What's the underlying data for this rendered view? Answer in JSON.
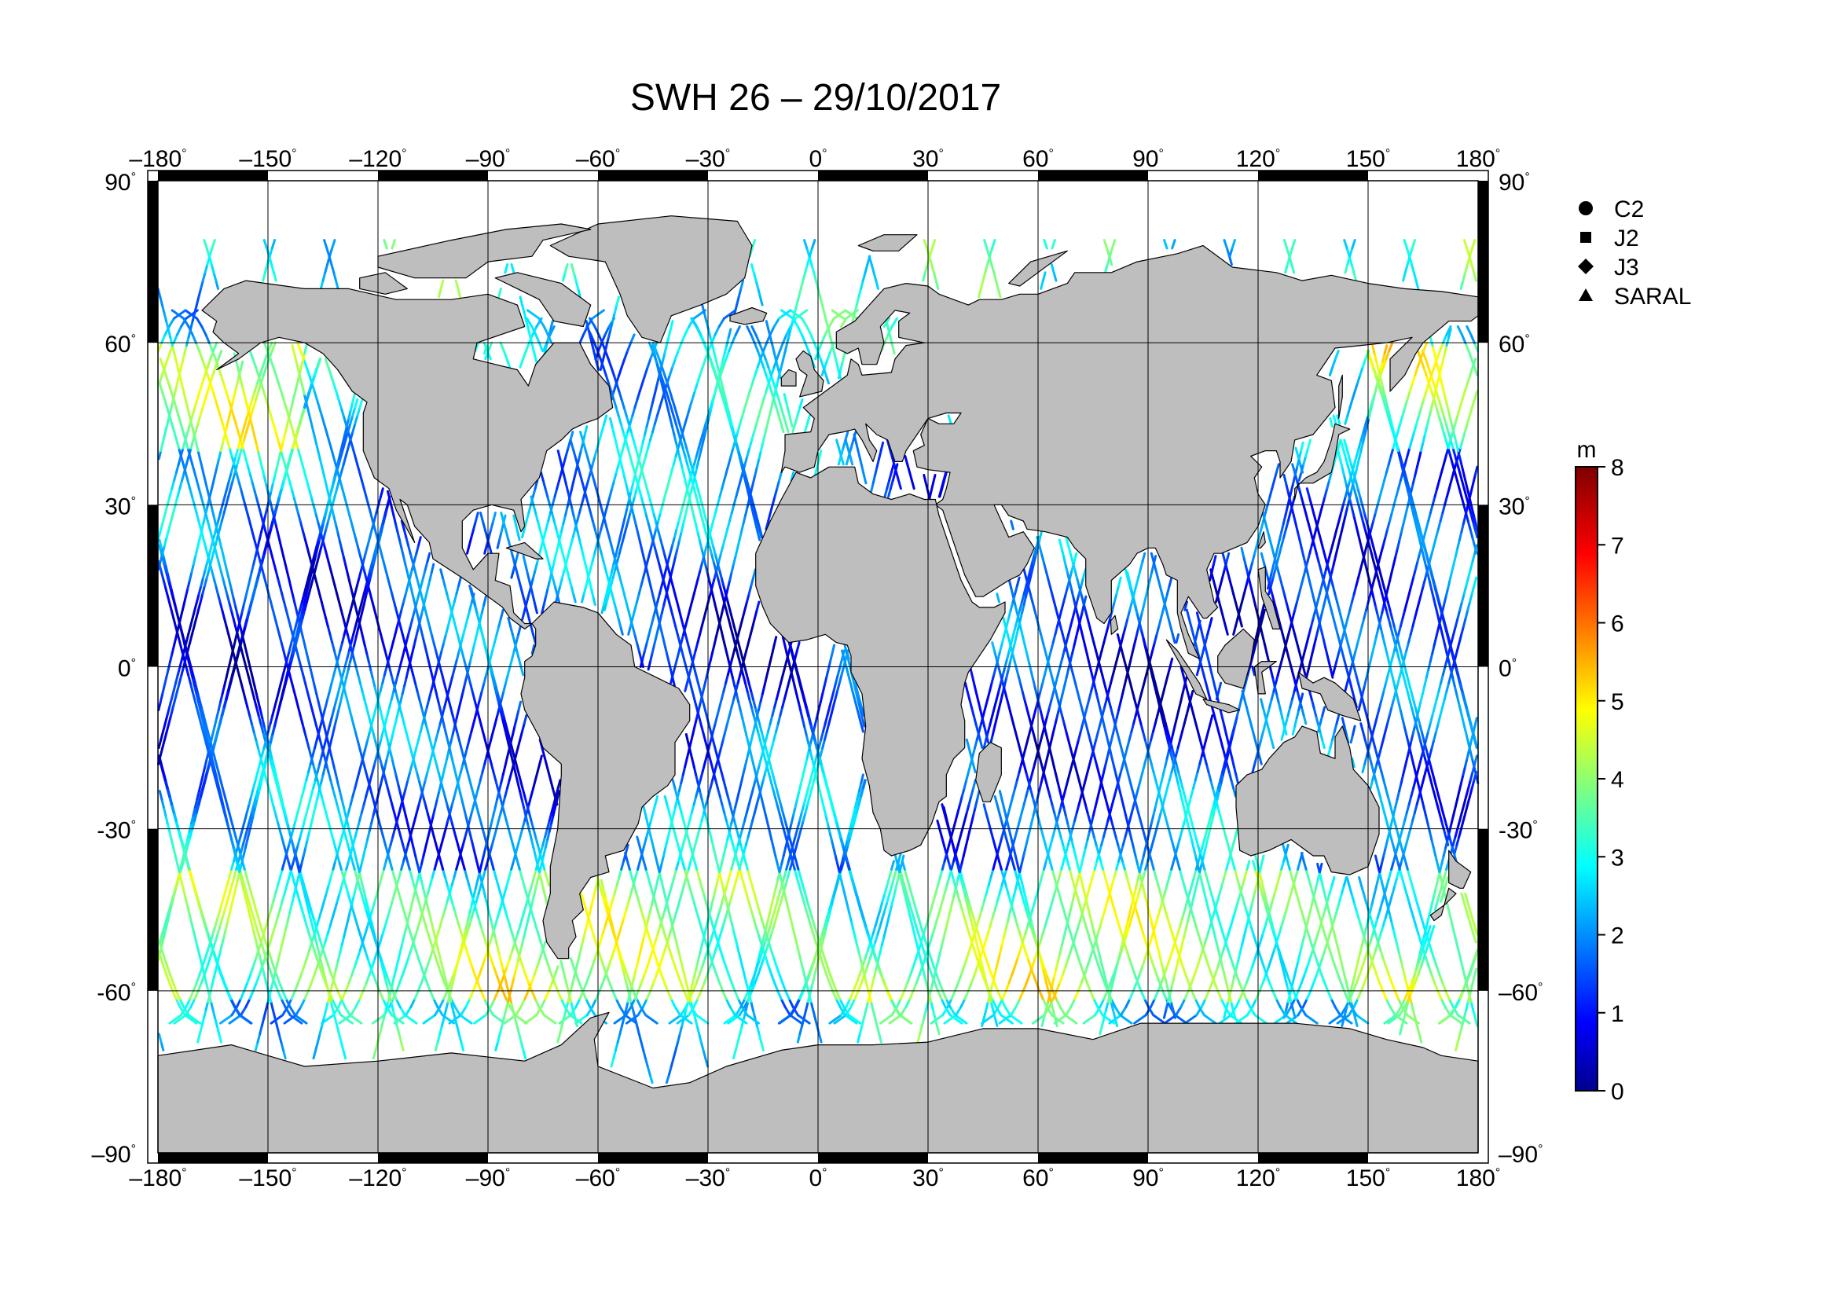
{
  "title": "SWH 26 – 29/10/2017",
  "x_ticks": [
    "–180",
    "–150",
    "–120",
    "–90",
    "–60",
    "–30",
    "0",
    "30",
    "60",
    "90",
    "120",
    "150",
    "180"
  ],
  "y_ticks": [
    "90",
    "60",
    "30",
    "0",
    "-30",
    "-60",
    "–90"
  ],
  "y_ticks_right": [
    "90",
    "60",
    "30",
    "0",
    "-30",
    "–60",
    "–90"
  ],
  "degree_symbol": "°",
  "legend": [
    {
      "label": "C2",
      "marker": "circle"
    },
    {
      "label": "J2",
      "marker": "square"
    },
    {
      "label": "J3",
      "marker": "diamond"
    },
    {
      "label": "SARAL",
      "marker": "triangle"
    }
  ],
  "colorbar": {
    "unit": "m",
    "min": 0,
    "max": 8,
    "ticks": [
      "0",
      "1",
      "2",
      "3",
      "4",
      "5",
      "6",
      "7",
      "8"
    ],
    "colormap": "jet"
  },
  "colors": {
    "land": "#bebebe",
    "ocean": "#ffffff",
    "grid": "#000000"
  },
  "map": {
    "projection": "equirectangular",
    "lon_range": [
      -180,
      180
    ],
    "lat_range": [
      -90,
      90
    ],
    "grid_spacing_deg": 30
  }
}
